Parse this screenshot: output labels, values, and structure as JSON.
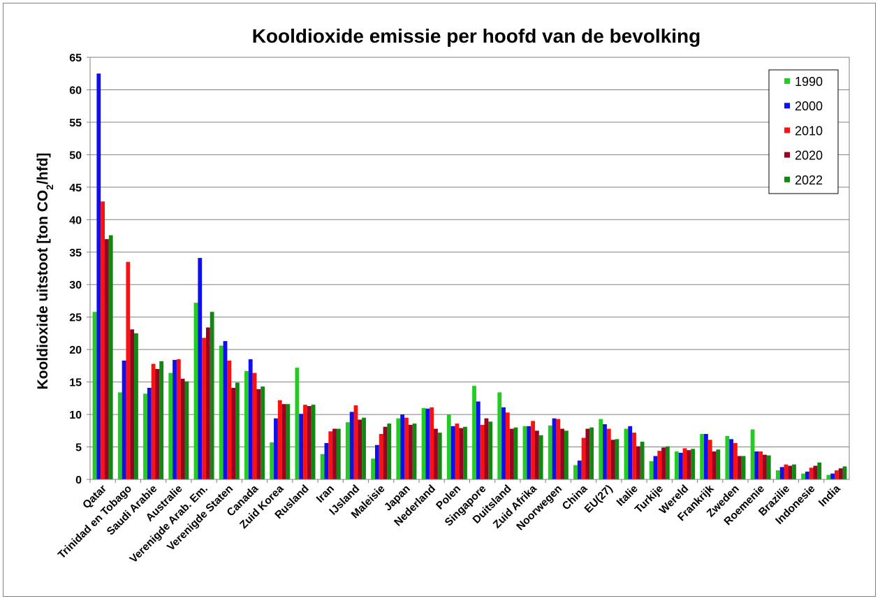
{
  "chart_data": {
    "type": "bar",
    "title": "Kooldioxide emissie per hoofd van de bevolking",
    "ylabel": "Kooldioxide uitstoot [ton CO2/hfd]",
    "ylabel_parts": {
      "before": "Kooldioxide uitstoot [ton CO",
      "sub": "2",
      "after": "/hfd]"
    },
    "xlabel": "",
    "ylim": [
      0,
      65
    ],
    "yticks": [
      0,
      5,
      10,
      15,
      20,
      25,
      30,
      35,
      40,
      45,
      50,
      55,
      60,
      65
    ],
    "grid": "horizontal",
    "legend_position": "top-right",
    "categories": [
      "Qatar",
      "Trinidad en Tobago",
      "Saudi Arabie",
      "Australie",
      "Verenigde Arab. Em.",
      "Verenigde Staten",
      "Canada",
      "Zuid Korea",
      "Rusland",
      "Iran",
      "IJsland",
      "Maleisie",
      "Japan",
      "Nederland",
      "Polen",
      "Singapore",
      "Duitsland",
      "Zuid Afrika",
      "Noorwegen",
      "China",
      "EU(27)",
      "Italie",
      "Turkije",
      "Wereld",
      "Frankrijk",
      "Zweden",
      "Roemenie",
      "Brazilie",
      "Indonesie",
      "India"
    ],
    "series": [
      {
        "name": "1990",
        "color": "#22cc22",
        "values": [
          25.8,
          13.4,
          13.2,
          16.4,
          27.2,
          20.6,
          16.7,
          5.7,
          17.2,
          3.9,
          8.8,
          3.2,
          9.4,
          11.0,
          10.0,
          14.4,
          13.4,
          8.2,
          8.3,
          2.2,
          9.3,
          7.8,
          2.8,
          4.3,
          7.0,
          6.7,
          7.7,
          1.4,
          0.9,
          0.7
        ]
      },
      {
        "name": "2000",
        "color": "#1010ee",
        "values": [
          62.5,
          18.3,
          14.1,
          18.4,
          34.1,
          21.3,
          18.5,
          9.4,
          10.1,
          5.6,
          10.4,
          5.3,
          10.0,
          10.9,
          8.2,
          12.0,
          11.1,
          8.2,
          9.4,
          2.9,
          8.5,
          8.2,
          3.6,
          4.1,
          7.0,
          6.2,
          4.3,
          1.9,
          1.2,
          0.9
        ]
      },
      {
        "name": "2010",
        "color": "#ff1010",
        "values": [
          42.8,
          33.5,
          17.8,
          18.5,
          21.8,
          18.3,
          16.4,
          12.2,
          11.5,
          7.4,
          11.4,
          7.0,
          9.5,
          11.1,
          8.6,
          8.4,
          10.3,
          9.0,
          9.3,
          6.4,
          7.8,
          7.2,
          4.4,
          4.8,
          6.1,
          5.6,
          4.3,
          2.3,
          1.8,
          1.4
        ]
      },
      {
        "name": "2020",
        "color": "#990022",
        "values": [
          37.0,
          23.1,
          17.0,
          15.5,
          23.4,
          14.1,
          13.9,
          11.6,
          11.3,
          7.8,
          9.2,
          8.1,
          8.4,
          7.8,
          7.9,
          9.4,
          7.8,
          7.5,
          7.8,
          7.8,
          6.1,
          5.1,
          4.9,
          4.5,
          4.3,
          3.6,
          3.8,
          2.1,
          2.1,
          1.7
        ]
      },
      {
        "name": "2022",
        "color": "#118811",
        "values": [
          37.6,
          22.5,
          18.2,
          15.1,
          25.8,
          14.9,
          14.3,
          11.6,
          11.5,
          7.8,
          9.5,
          8.6,
          8.6,
          7.2,
          8.1,
          8.9,
          8.0,
          6.8,
          7.5,
          8.0,
          6.2,
          5.8,
          5.1,
          4.7,
          4.6,
          3.6,
          3.7,
          2.3,
          2.6,
          2.0
        ]
      }
    ]
  }
}
